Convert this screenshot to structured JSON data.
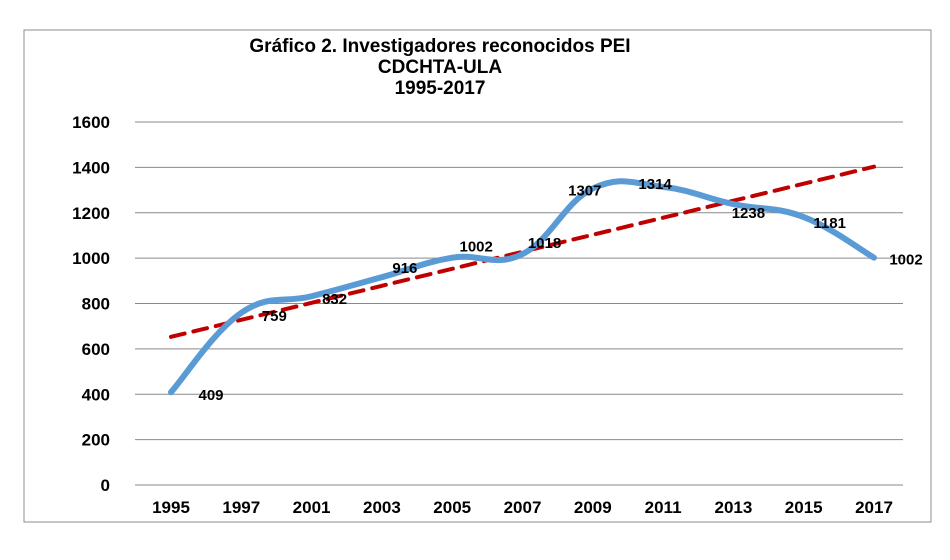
{
  "chart_data": {
    "type": "line",
    "title_lines": [
      "Gráfico 2. Investigadores reconocidos  PEI",
      "CDCHTA-ULA",
      "1995-2017"
    ],
    "xlabel": "",
    "ylabel": "",
    "categories": [
      "1995",
      "1997",
      "2001",
      "2003",
      "2005",
      "2007",
      "2009",
      "2011",
      "2013",
      "2015",
      "2017"
    ],
    "series": [
      {
        "values": [
          409,
          759,
          832,
          916,
          1002,
          1018,
          1307,
          1314,
          1238,
          1181,
          1002
        ],
        "data_labels": [
          "409",
          "759",
          "832",
          "916",
          "1002",
          "1018",
          "1307",
          "1314",
          "1238",
          "1181",
          "1002"
        ],
        "style": "smooth-solid",
        "color": "#5B9BD5"
      },
      {
        "values": [
          653,
          728,
          803,
          878,
          953,
          1028,
          1103,
          1178,
          1253,
          1328,
          1403
        ],
        "style": "dashed-trendline",
        "color": "#C00000"
      }
    ],
    "y_ticks": [
      "0",
      "200",
      "400",
      "600",
      "800",
      "1000",
      "1200",
      "1400",
      "1600"
    ],
    "ylim": [
      0,
      1600
    ],
    "grid": "horizontal",
    "legend": "none"
  }
}
